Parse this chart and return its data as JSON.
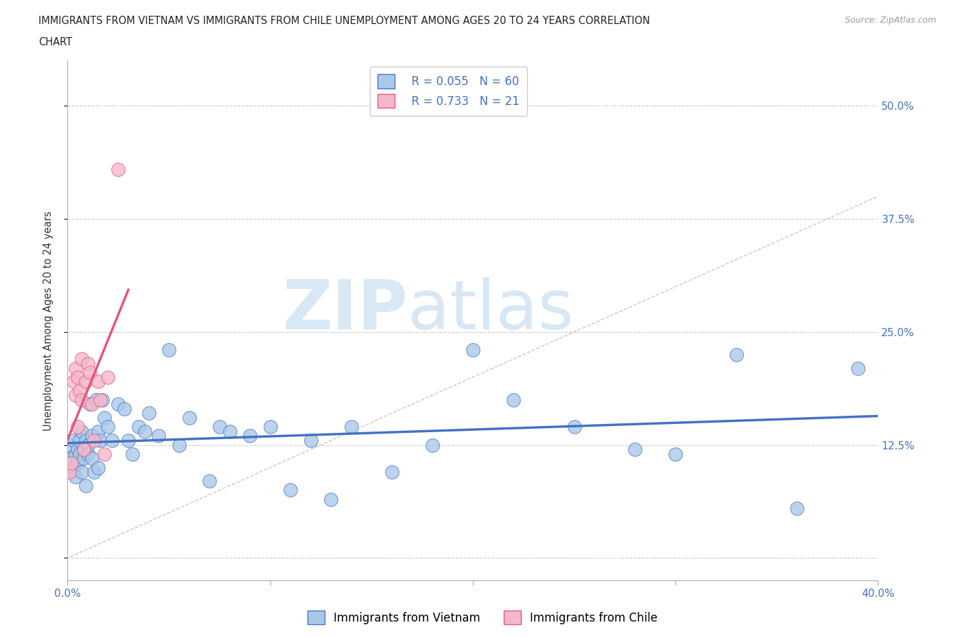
{
  "title_line1": "IMMIGRANTS FROM VIETNAM VS IMMIGRANTS FROM CHILE UNEMPLOYMENT AMONG AGES 20 TO 24 YEARS CORRELATION",
  "title_line2": "CHART",
  "source_text": "Source: ZipAtlas.com",
  "ylabel": "Unemployment Among Ages 20 to 24 years",
  "xlabel_vietnam": "Immigrants from Vietnam",
  "xlabel_chile": "Immigrants from Chile",
  "xlim": [
    0.0,
    0.4
  ],
  "ylim": [
    -0.025,
    0.55
  ],
  "yticks": [
    0.0,
    0.125,
    0.25,
    0.375,
    0.5
  ],
  "xticks": [
    0.0,
    0.1,
    0.2,
    0.3,
    0.4
  ],
  "R_vietnam": 0.055,
  "N_vietnam": 60,
  "R_chile": 0.733,
  "N_chile": 21,
  "color_vietnam": "#aac8e8",
  "color_chile": "#f5b8ca",
  "line_color_vietnam": "#4472c4",
  "line_color_chile": "#e8547a",
  "line_color_diagonal": "#c8c8c8",
  "vietnam_x": [
    0.001,
    0.002,
    0.003,
    0.003,
    0.004,
    0.004,
    0.005,
    0.005,
    0.006,
    0.006,
    0.007,
    0.007,
    0.008,
    0.008,
    0.009,
    0.009,
    0.01,
    0.01,
    0.011,
    0.012,
    0.012,
    0.013,
    0.014,
    0.015,
    0.015,
    0.016,
    0.017,
    0.018,
    0.02,
    0.022,
    0.025,
    0.028,
    0.03,
    0.032,
    0.035,
    0.038,
    0.04,
    0.045,
    0.05,
    0.055,
    0.06,
    0.07,
    0.075,
    0.08,
    0.09,
    0.1,
    0.11,
    0.12,
    0.13,
    0.14,
    0.16,
    0.18,
    0.2,
    0.22,
    0.25,
    0.28,
    0.3,
    0.33,
    0.36,
    0.39
  ],
  "vietnam_y": [
    0.125,
    0.11,
    0.13,
    0.1,
    0.115,
    0.09,
    0.12,
    0.105,
    0.13,
    0.115,
    0.095,
    0.14,
    0.12,
    0.11,
    0.13,
    0.08,
    0.125,
    0.115,
    0.17,
    0.135,
    0.11,
    0.095,
    0.175,
    0.14,
    0.1,
    0.13,
    0.175,
    0.155,
    0.145,
    0.13,
    0.17,
    0.165,
    0.13,
    0.115,
    0.145,
    0.14,
    0.16,
    0.135,
    0.23,
    0.125,
    0.155,
    0.085,
    0.145,
    0.14,
    0.135,
    0.145,
    0.075,
    0.13,
    0.065,
    0.145,
    0.095,
    0.125,
    0.23,
    0.175,
    0.145,
    0.12,
    0.115,
    0.225,
    0.055,
    0.21
  ],
  "chile_x": [
    0.001,
    0.002,
    0.003,
    0.004,
    0.004,
    0.005,
    0.005,
    0.006,
    0.007,
    0.007,
    0.008,
    0.009,
    0.01,
    0.011,
    0.012,
    0.013,
    0.015,
    0.016,
    0.018,
    0.02,
    0.025
  ],
  "chile_y": [
    0.095,
    0.105,
    0.195,
    0.18,
    0.21,
    0.145,
    0.2,
    0.185,
    0.175,
    0.22,
    0.12,
    0.195,
    0.215,
    0.205,
    0.17,
    0.13,
    0.195,
    0.175,
    0.115,
    0.2,
    0.43
  ]
}
